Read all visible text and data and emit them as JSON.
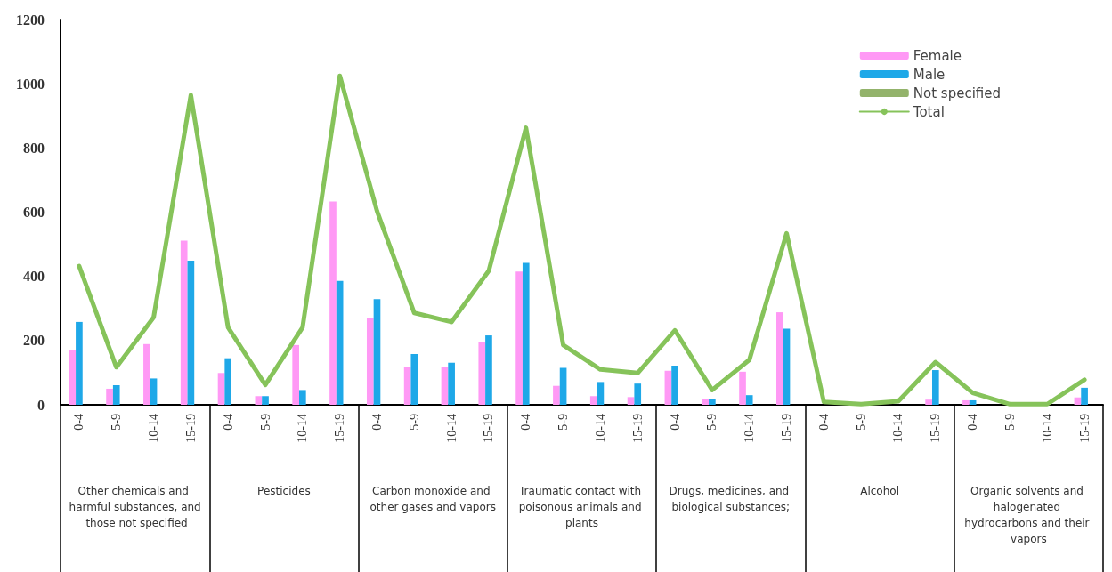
{
  "chart_data": {
    "type": "bar",
    "categories": [
      "0-4",
      "5-9",
      "10-14",
      "15-19",
      "0-4",
      "5-9",
      "10-14",
      "15-19",
      "0-4",
      "5-9",
      "10-14",
      "15-19",
      "0-4",
      "5-9",
      "10-14",
      "15-19",
      "0-4",
      "5-9",
      "10-14",
      "15-19",
      "0-4",
      "5-9",
      "10-14",
      "15-19",
      "0-4",
      "5-9",
      "10-14",
      "15-19"
    ],
    "series": [
      {
        "name": "Female",
        "color": "#ff99f5",
        "values": [
          170,
          50,
          189,
          511,
          99,
          27,
          186,
          633,
          271,
          117,
          117,
          195,
          415,
          59,
          27,
          24,
          106,
          19,
          103,
          288,
          0,
          0,
          0,
          16,
          14,
          0,
          0,
          23
        ]
      },
      {
        "name": "Male",
        "color": "#1ea8e8",
        "values": [
          258,
          61,
          82,
          449,
          145,
          27,
          46,
          386,
          329,
          158,
          131,
          216,
          442,
          115,
          71,
          66,
          122,
          19,
          30,
          237,
          0,
          0,
          0,
          108,
          14,
          0,
          0,
          53
        ]
      },
      {
        "name": "Not specified",
        "color": "#93b36b",
        "values": [
          0,
          0,
          0,
          0,
          0,
          0,
          0,
          0,
          0,
          0,
          0,
          0,
          0,
          0,
          0,
          0,
          0,
          0,
          0,
          0,
          0,
          0,
          0,
          0,
          0,
          0,
          0,
          0
        ]
      },
      {
        "name": "Total",
        "type": "line",
        "color": "#86c35a",
        "values": [
          432,
          117,
          272,
          965,
          241,
          62,
          241,
          1025,
          603,
          286,
          258,
          417,
          863,
          186,
          110,
          99,
          232,
          46,
          140,
          534,
          9,
          2,
          11,
          133,
          37,
          2,
          2,
          78
        ]
      }
    ],
    "annotations": [
      "Other chemicals and harmful substances, and those not specified",
      "Pesticides",
      "Carbon monoxide and other gases and vapors",
      "Traumatic contact with poisonous animals and plants",
      "Drugs, medicines, and biological substances;",
      "Alcohol",
      "Organic solvents and halogenated hydrocarbons and their vapors"
    ],
    "ylim": [
      0,
      1200
    ],
    "yticks": [
      0,
      200,
      400,
      600,
      800,
      1000,
      1200
    ],
    "grid": false,
    "legend": "top right",
    "marker": "none",
    "line_style": "solid"
  }
}
